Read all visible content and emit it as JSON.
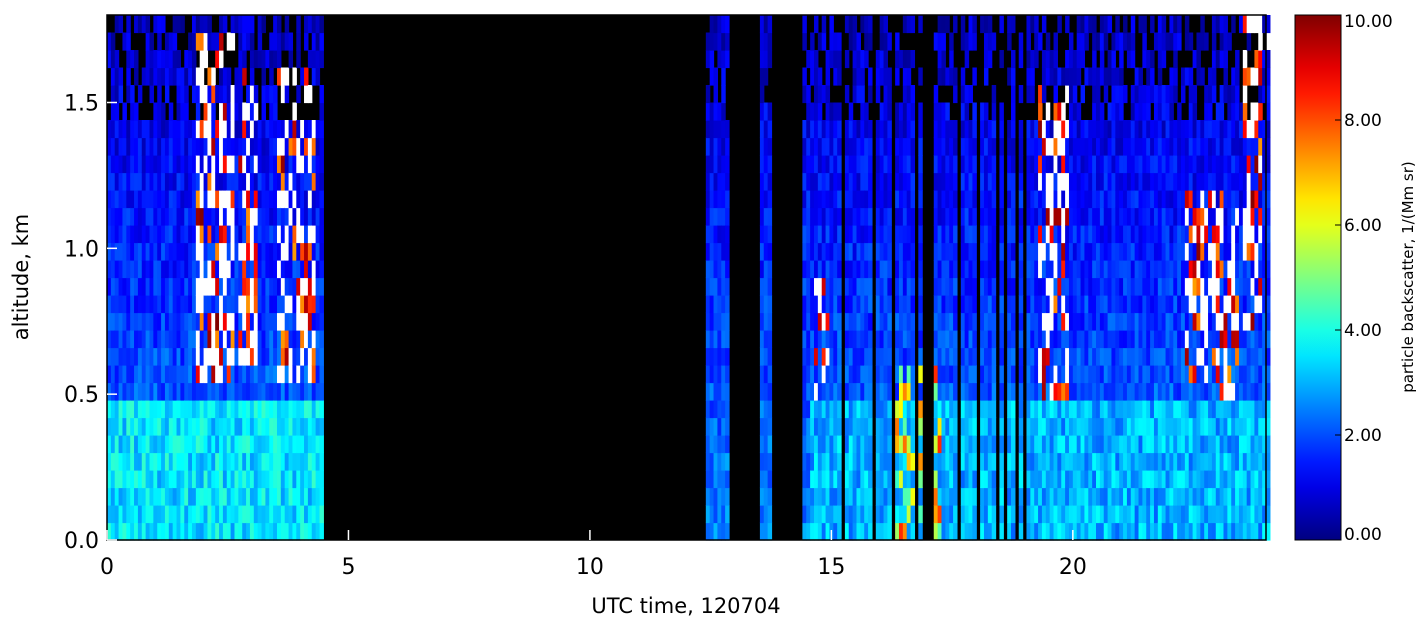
{
  "chart_data": {
    "type": "heatmap",
    "title": "",
    "xlabel": "UTC time, 120704",
    "ylabel": "altitude, km",
    "xlim": [
      0,
      24
    ],
    "ylim": [
      0,
      1.8
    ],
    "x_ticks": [
      0,
      5,
      10,
      15,
      20
    ],
    "x_tick_labels": [
      "0",
      "5",
      "10",
      "15",
      "20"
    ],
    "y_ticks": [
      0.0,
      0.5,
      1.0,
      1.5
    ],
    "y_tick_labels": [
      "0.0",
      "0.5",
      "1.0",
      "1.5"
    ],
    "colorbar": {
      "label": "particle backscatter, 1/(Mm sr)",
      "range": [
        0,
        10
      ],
      "ticks": [
        0,
        2,
        4,
        6,
        8,
        10
      ],
      "tick_labels": [
        "0.00",
        "2.00",
        "4.00",
        "6.00",
        "8.00",
        "10.00"
      ],
      "colormap": "jet",
      "over_color": "#ffffff",
      "no_data_color": "#000000"
    },
    "no_data_periods": [
      [
        4.5,
        12.4
      ],
      [
        12.85,
        13.5
      ],
      [
        13.8,
        14.4
      ]
    ],
    "resolution": {
      "time_h": 0.08,
      "altitude_km": 0.06
    },
    "features": [
      {
        "name": "lower layer",
        "time": [
          0,
          4.5
        ],
        "altitude": [
          0,
          0.45
        ],
        "value": 3.5
      },
      {
        "name": "cloud plume",
        "time": [
          1.8,
          2.6
        ],
        "altitude": [
          0.5,
          1.7
        ],
        "value": 12
      },
      {
        "name": "cloud plume",
        "time": [
          2.7,
          3.1
        ],
        "altitude": [
          0.6,
          1.6
        ],
        "value": 12
      },
      {
        "name": "cloud plume",
        "time": [
          3.5,
          4.3
        ],
        "altitude": [
          0.5,
          1.6
        ],
        "value": 12
      },
      {
        "name": "lower layer",
        "time": [
          14.5,
          24
        ],
        "altitude": [
          0,
          0.45
        ],
        "value": 3.0
      },
      {
        "name": "cloud plume",
        "time": [
          14.6,
          14.9
        ],
        "altitude": [
          0.45,
          0.85
        ],
        "value": 12
      },
      {
        "name": "cloud plume",
        "time": [
          16.2,
          17.2
        ],
        "altitude": [
          0,
          0.6
        ],
        "value": 7
      },
      {
        "name": "cloud plume",
        "time": [
          19.2,
          19.9
        ],
        "altitude": [
          0.45,
          1.55
        ],
        "value": 12
      },
      {
        "name": "cloud plume",
        "time": [
          22.3,
          23.4
        ],
        "altitude": [
          0.45,
          1.2
        ],
        "value": 12
      },
      {
        "name": "cloud plume",
        "time": [
          23.5,
          23.9
        ],
        "altitude": [
          0.7,
          1.8
        ],
        "value": 12
      }
    ]
  }
}
